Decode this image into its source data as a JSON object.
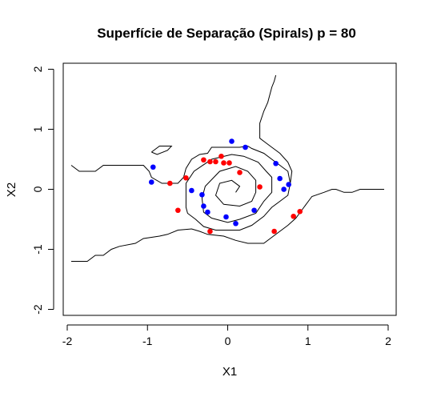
{
  "chart_data": {
    "type": "scatter",
    "title": "Superfície de Separação (Spirals) p = 80",
    "xlabel": "X1",
    "ylabel": "X2",
    "xlim": [
      -2.05,
      2.1
    ],
    "ylim": [
      -2.1,
      2.1
    ],
    "x_ticks": [
      -2,
      -1,
      0,
      1,
      2
    ],
    "y_ticks": [
      -2,
      -1,
      0,
      1,
      2
    ],
    "x_tick_labels": [
      "-2",
      "-1",
      "0",
      "1",
      "2"
    ],
    "y_tick_labels": [
      "-2",
      "-1",
      "0",
      "1",
      "2"
    ],
    "colors": {
      "class_blue": "#0000ff",
      "class_red": "#ff0000",
      "contour": "#000000"
    },
    "series": [
      {
        "color": "#0000ff",
        "points": [
          [
            0.05,
            0.8
          ],
          [
            0.22,
            0.7
          ],
          [
            0.6,
            0.43
          ],
          [
            0.65,
            0.18
          ],
          [
            0.7,
            0.0
          ],
          [
            0.76,
            0.08
          ],
          [
            0.33,
            -0.35
          ],
          [
            0.1,
            -0.57
          ],
          [
            -0.02,
            -0.46
          ],
          [
            -0.25,
            -0.38
          ],
          [
            -0.3,
            -0.28
          ],
          [
            -0.32,
            -0.09
          ],
          [
            -0.45,
            -0.02
          ],
          [
            -0.93,
            0.37
          ],
          [
            -0.95,
            0.12
          ]
        ]
      },
      {
        "color": "#ff0000",
        "points": [
          [
            -0.72,
            0.1
          ],
          [
            -0.52,
            0.19
          ],
          [
            -0.3,
            0.49
          ],
          [
            -0.22,
            0.46
          ],
          [
            -0.15,
            0.46
          ],
          [
            -0.08,
            0.55
          ],
          [
            -0.05,
            0.44
          ],
          [
            0.02,
            0.44
          ],
          [
            0.15,
            0.28
          ],
          [
            0.4,
            0.04
          ],
          [
            -0.62,
            -0.35
          ],
          [
            -0.22,
            -0.7
          ],
          [
            0.58,
            -0.7
          ],
          [
            0.82,
            -0.45
          ],
          [
            0.9,
            -0.37
          ]
        ]
      }
    ],
    "contours": [
      [
        [
          -1.95,
          0.4
        ],
        [
          -1.85,
          0.3
        ],
        [
          -1.65,
          0.3
        ],
        [
          -1.55,
          0.4
        ],
        [
          -1.05,
          0.4
        ],
        [
          -0.98,
          0.3
        ],
        [
          -0.95,
          0.2
        ],
        [
          -0.82,
          0.1
        ],
        [
          -0.62,
          0.1
        ],
        [
          -0.55,
          0.2
        ],
        [
          -0.52,
          0.35
        ],
        [
          -0.45,
          0.5
        ],
        [
          -0.35,
          0.58
        ],
        [
          -0.25,
          0.6
        ],
        [
          -0.2,
          0.7
        ],
        [
          0.15,
          0.7
        ],
        [
          0.25,
          0.72
        ],
        [
          0.3,
          0.68
        ],
        [
          0.45,
          0.6
        ],
        [
          0.55,
          0.5
        ],
        [
          0.65,
          0.4
        ],
        [
          0.75,
          0.3
        ],
        [
          0.78,
          0.1
        ],
        [
          0.75,
          -0.1
        ],
        [
          0.65,
          -0.2
        ],
        [
          0.55,
          -0.3
        ],
        [
          0.45,
          -0.45
        ],
        [
          0.3,
          -0.6
        ],
        [
          0.15,
          -0.68
        ],
        [
          -0.15,
          -0.68
        ],
        [
          -0.3,
          -0.62
        ],
        [
          -0.4,
          -0.5
        ],
        [
          -0.5,
          -0.4
        ],
        [
          -0.52,
          -0.3
        ],
        [
          -0.52,
          0.1
        ],
        [
          -0.42,
          0.3
        ],
        [
          -0.2,
          0.5
        ],
        [
          0.05,
          0.58
        ],
        [
          0.2,
          0.55
        ],
        [
          0.38,
          0.45
        ],
        [
          0.48,
          0.3
        ],
        [
          0.55,
          0.2
        ],
        [
          0.55,
          -0.05
        ],
        [
          0.45,
          -0.2
        ],
        [
          0.35,
          -0.4
        ],
        [
          0.15,
          -0.5
        ],
        [
          0.0,
          -0.55
        ],
        [
          -0.2,
          -0.48
        ],
        [
          -0.3,
          -0.38
        ],
        [
          -0.32,
          -0.15
        ],
        [
          -0.28,
          0.05
        ],
        [
          -0.1,
          0.3
        ],
        [
          0.1,
          0.38
        ],
        [
          0.25,
          0.3
        ],
        [
          0.35,
          0.15
        ],
        [
          0.35,
          -0.05
        ],
        [
          0.3,
          -0.2
        ],
        [
          0.15,
          -0.28
        ],
        [
          -0.05,
          -0.25
        ],
        [
          -0.15,
          -0.1
        ],
        [
          -0.1,
          0.1
        ],
        [
          0.05,
          0.15
        ],
        [
          0.15,
          0.05
        ],
        [
          0.1,
          -0.05
        ]
      ],
      [
        [
          -1.95,
          -1.2
        ],
        [
          -1.75,
          -1.2
        ],
        [
          -1.65,
          -1.1
        ],
        [
          -1.55,
          -1.1
        ],
        [
          -1.45,
          -1.0
        ],
        [
          -1.35,
          -0.95
        ],
        [
          -1.15,
          -0.9
        ],
        [
          -1.05,
          -0.82
        ],
        [
          -0.95,
          -0.8
        ],
        [
          -0.85,
          -0.78
        ],
        [
          -0.75,
          -0.75
        ],
        [
          -0.62,
          -0.68
        ],
        [
          -0.45,
          -0.66
        ],
        [
          -0.35,
          -0.7
        ],
        [
          -0.25,
          -0.75
        ],
        [
          -0.05,
          -0.78
        ],
        [
          0.1,
          -0.85
        ],
        [
          0.25,
          -0.9
        ],
        [
          0.45,
          -0.9
        ],
        [
          0.55,
          -0.8
        ],
        [
          0.75,
          -0.6
        ],
        [
          0.85,
          -0.48
        ],
        [
          0.95,
          -0.3
        ],
        [
          1.05,
          -0.12
        ],
        [
          1.2,
          -0.05
        ],
        [
          1.3,
          0.0
        ],
        [
          1.35,
          0.0
        ],
        [
          1.45,
          -0.05
        ],
        [
          1.55,
          -0.05
        ],
        [
          1.65,
          0.0
        ],
        [
          1.95,
          0.0
        ]
      ],
      [
        [
          0.6,
          1.9
        ],
        [
          0.58,
          1.8
        ],
        [
          0.55,
          1.7
        ],
        [
          0.5,
          1.45
        ],
        [
          0.45,
          1.3
        ],
        [
          0.4,
          1.1
        ],
        [
          0.4,
          0.85
        ],
        [
          0.45,
          0.8
        ],
        [
          0.55,
          0.7
        ],
        [
          0.65,
          0.6
        ],
        [
          0.75,
          0.45
        ],
        [
          0.8,
          0.3
        ],
        [
          0.78,
          0.1
        ]
      ],
      [
        [
          -0.95,
          0.62
        ],
        [
          -0.85,
          0.72
        ],
        [
          -0.7,
          0.72
        ],
        [
          -0.75,
          0.65
        ],
        [
          -0.88,
          0.58
        ],
        [
          -0.95,
          0.62
        ]
      ]
    ]
  }
}
